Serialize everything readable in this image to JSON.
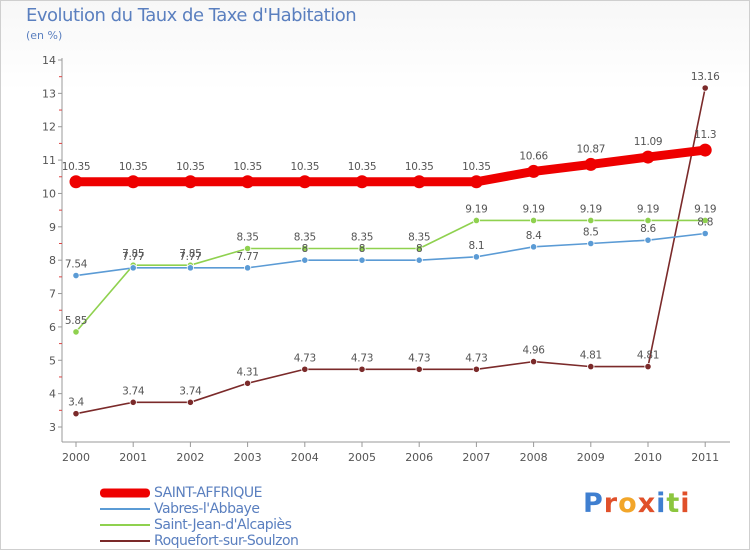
{
  "chart_data": {
    "type": "line",
    "title": "Evolution du Taux de Taxe d'Habitation",
    "subtitle": "(en %)",
    "x": [
      "2000",
      "2001",
      "2002",
      "2003",
      "2004",
      "2005",
      "2006",
      "2007",
      "2008",
      "2009",
      "2010",
      "2011"
    ],
    "ylim": [
      3,
      14
    ],
    "yticks": [
      "3",
      "4",
      "5",
      "6",
      "7",
      "8",
      "9",
      "10",
      "11",
      "12",
      "13",
      "14"
    ],
    "grid": false,
    "legend_position": "bottom-left",
    "series": [
      {
        "name": "SAINT-AFFRIQUE",
        "color": "#ee0000",
        "values": [
          10.35,
          10.35,
          10.35,
          10.35,
          10.35,
          10.35,
          10.35,
          10.35,
          10.66,
          10.87,
          11.09,
          11.3
        ],
        "labels": [
          "10.35",
          "10.35",
          "10.35",
          "10.35",
          "10.35",
          "10.35",
          "10.35",
          "10.35",
          "10.66",
          "10.87",
          "11.09",
          "11.3"
        ]
      },
      {
        "name": "Vabres-l'Abbaye",
        "color": "#5b9bd5",
        "values": [
          7.54,
          7.77,
          7.77,
          7.77,
          8.0,
          8.0,
          8.0,
          8.1,
          8.4,
          8.5,
          8.6,
          8.8
        ],
        "labels": [
          "7.54",
          "7.77",
          "7.77",
          "7.77",
          "8",
          "8",
          "8",
          "8.1",
          "8.4",
          "8.5",
          "8.6",
          "8.8"
        ]
      },
      {
        "name": "Saint-Jean-d'Alcapiès",
        "color": "#8fd14f",
        "values": [
          5.85,
          7.85,
          7.85,
          8.35,
          8.35,
          8.35,
          8.35,
          9.19,
          9.19,
          9.19,
          9.19,
          9.19
        ],
        "labels": [
          "5.85",
          "7.85",
          "7.85",
          "8.35",
          "8.35",
          "8.35",
          "8.35",
          "9.19",
          "9.19",
          "9.19",
          "9.19",
          "9.19"
        ]
      },
      {
        "name": "Roquefort-sur-Soulzon",
        "color": "#7b2a2a",
        "values": [
          3.4,
          3.74,
          3.74,
          4.31,
          4.73,
          4.73,
          4.73,
          4.73,
          4.96,
          4.81,
          4.81,
          13.16
        ],
        "labels": [
          "3.4",
          "3.74",
          "3.74",
          "4.31",
          "4.73",
          "4.73",
          "4.73",
          "4.73",
          "4.96",
          "4.81",
          "4.81",
          "13.16"
        ]
      }
    ]
  },
  "brand": {
    "logo_text": "Proxiti",
    "letter_colors": [
      "#3f7fd0",
      "#e0502a",
      "#f2a62a",
      "#e0502a",
      "#3f7fd0",
      "#8cc63f",
      "#e0502a"
    ]
  }
}
